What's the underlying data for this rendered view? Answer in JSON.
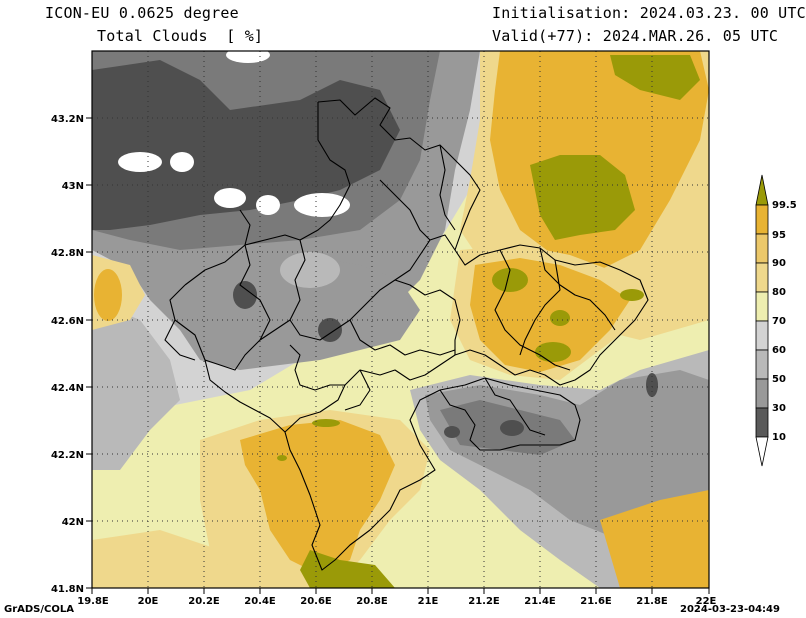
{
  "header": {
    "model": "ICON-EU 0.0625 degree",
    "variable": "Total Clouds  [ %]",
    "init": "Initialisation: 2024.03.23. 00 UTC",
    "valid": "Valid(+77): 2024.MAR.26. 05 UTC"
  },
  "map": {
    "lat_labels": [
      "43.2N",
      "43N",
      "42.8N",
      "42.6N",
      "42.4N",
      "42.2N",
      "42N",
      "41.8N"
    ],
    "lon_labels": [
      "19.8E",
      "20E",
      "20.2E",
      "20.4E",
      "20.6E",
      "20.8E",
      "21E",
      "21.2E",
      "21.4E",
      "21.6E",
      "21.8E",
      "22E"
    ]
  },
  "legend": {
    "levels": [
      "10",
      "30",
      "50",
      "60",
      "70",
      "80",
      "90",
      "95",
      "99.5"
    ],
    "colors": {
      "lt10": "#ffffff",
      "10_30": "#4f4f4f",
      "30_50": "#7a7a7a",
      "50_60": "#999999",
      "60_70": "#b9b9b9",
      "70_80": "#d3d3d3",
      "80_90": "#eeeeb0",
      "90_95": "#efd88c",
      "95_99": "#e8b333",
      "gt99": "#9a9a08"
    }
  },
  "footer": {
    "left": "GrADS/COLA",
    "right": "2024-03-23-04:49"
  }
}
